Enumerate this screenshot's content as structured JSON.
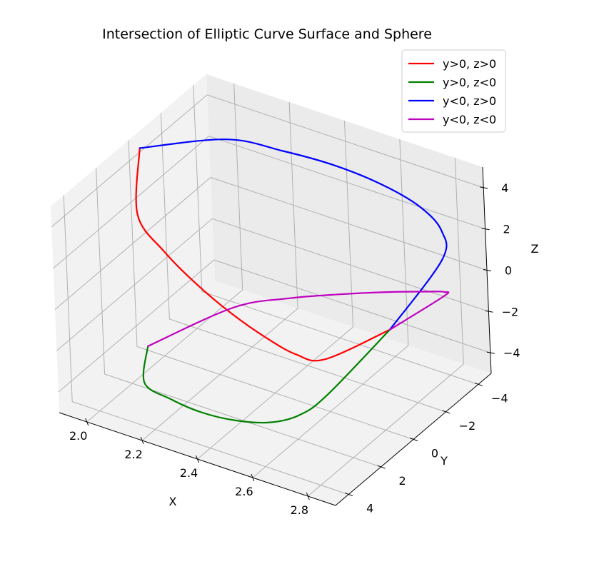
{
  "chart_data": {
    "type": "line",
    "projection": "3d",
    "title": "Intersection of Elliptic Curve Surface and Sphere",
    "xlabel": "X",
    "ylabel": "Y",
    "zlabel": "Z",
    "xlim": [
      1.9,
      2.9
    ],
    "ylim": [
      -4.8,
      4.8
    ],
    "zlim": [
      -5,
      5
    ],
    "xticks": [
      "2.0",
      "2.2",
      "2.4",
      "2.6",
      "2.8"
    ],
    "yticks": [
      "−4",
      "−2",
      "0",
      "2",
      "4"
    ],
    "zticks": [
      "−4",
      "−2",
      "0",
      "2",
      "4"
    ],
    "grid": true,
    "legend_position": "top-right",
    "series": [
      {
        "name": "y>0, z>0",
        "color": "#ff0000",
        "x": [
          1.94,
          2.09,
          2.24,
          2.39,
          2.54,
          2.67,
          2.76,
          2.81,
          2.83
        ],
        "y": [
          0.0,
          2.73,
          3.66,
          4.29,
          4.67,
          4.75,
          4.48,
          3.6,
          0.0
        ],
        "z": [
          4.8,
          4.08,
          3.57,
          3.12,
          2.59,
          2.04,
          1.47,
          0.88,
          0.0
        ]
      },
      {
        "name": "y>0, z<0",
        "color": "#008000",
        "x": [
          2.83,
          2.81,
          2.76,
          2.67,
          2.54,
          2.39,
          2.24,
          2.09,
          1.94
        ],
        "y": [
          0.0,
          3.6,
          4.48,
          4.75,
          4.67,
          4.29,
          3.66,
          2.73,
          0.0
        ],
        "z": [
          0.0,
          -0.88,
          -1.47,
          -2.04,
          -2.59,
          -3.12,
          -3.57,
          -4.08,
          -4.8
        ]
      },
      {
        "name": "y<0, z>0",
        "color": "#0000ff",
        "x": [
          1.94,
          2.09,
          2.24,
          2.39,
          2.54,
          2.67,
          2.76,
          2.81,
          2.83
        ],
        "y": [
          0.0,
          -2.73,
          -3.66,
          -4.29,
          -4.67,
          -4.75,
          -4.48,
          -3.6,
          0.0
        ],
        "z": [
          4.8,
          4.08,
          3.57,
          3.12,
          2.59,
          2.04,
          1.47,
          0.88,
          0.0
        ]
      },
      {
        "name": "y<0, z<0",
        "color": "#bf00bf",
        "x": [
          2.83,
          2.81,
          2.76,
          2.67,
          2.54,
          2.39,
          2.24,
          2.09,
          1.94
        ],
        "y": [
          0.0,
          -3.6,
          -4.48,
          -4.75,
          -4.67,
          -4.29,
          -3.66,
          -2.73,
          0.0
        ],
        "z": [
          0.0,
          -0.88,
          -1.47,
          -2.04,
          -2.59,
          -3.12,
          -3.57,
          -4.08,
          -4.8
        ]
      }
    ]
  }
}
